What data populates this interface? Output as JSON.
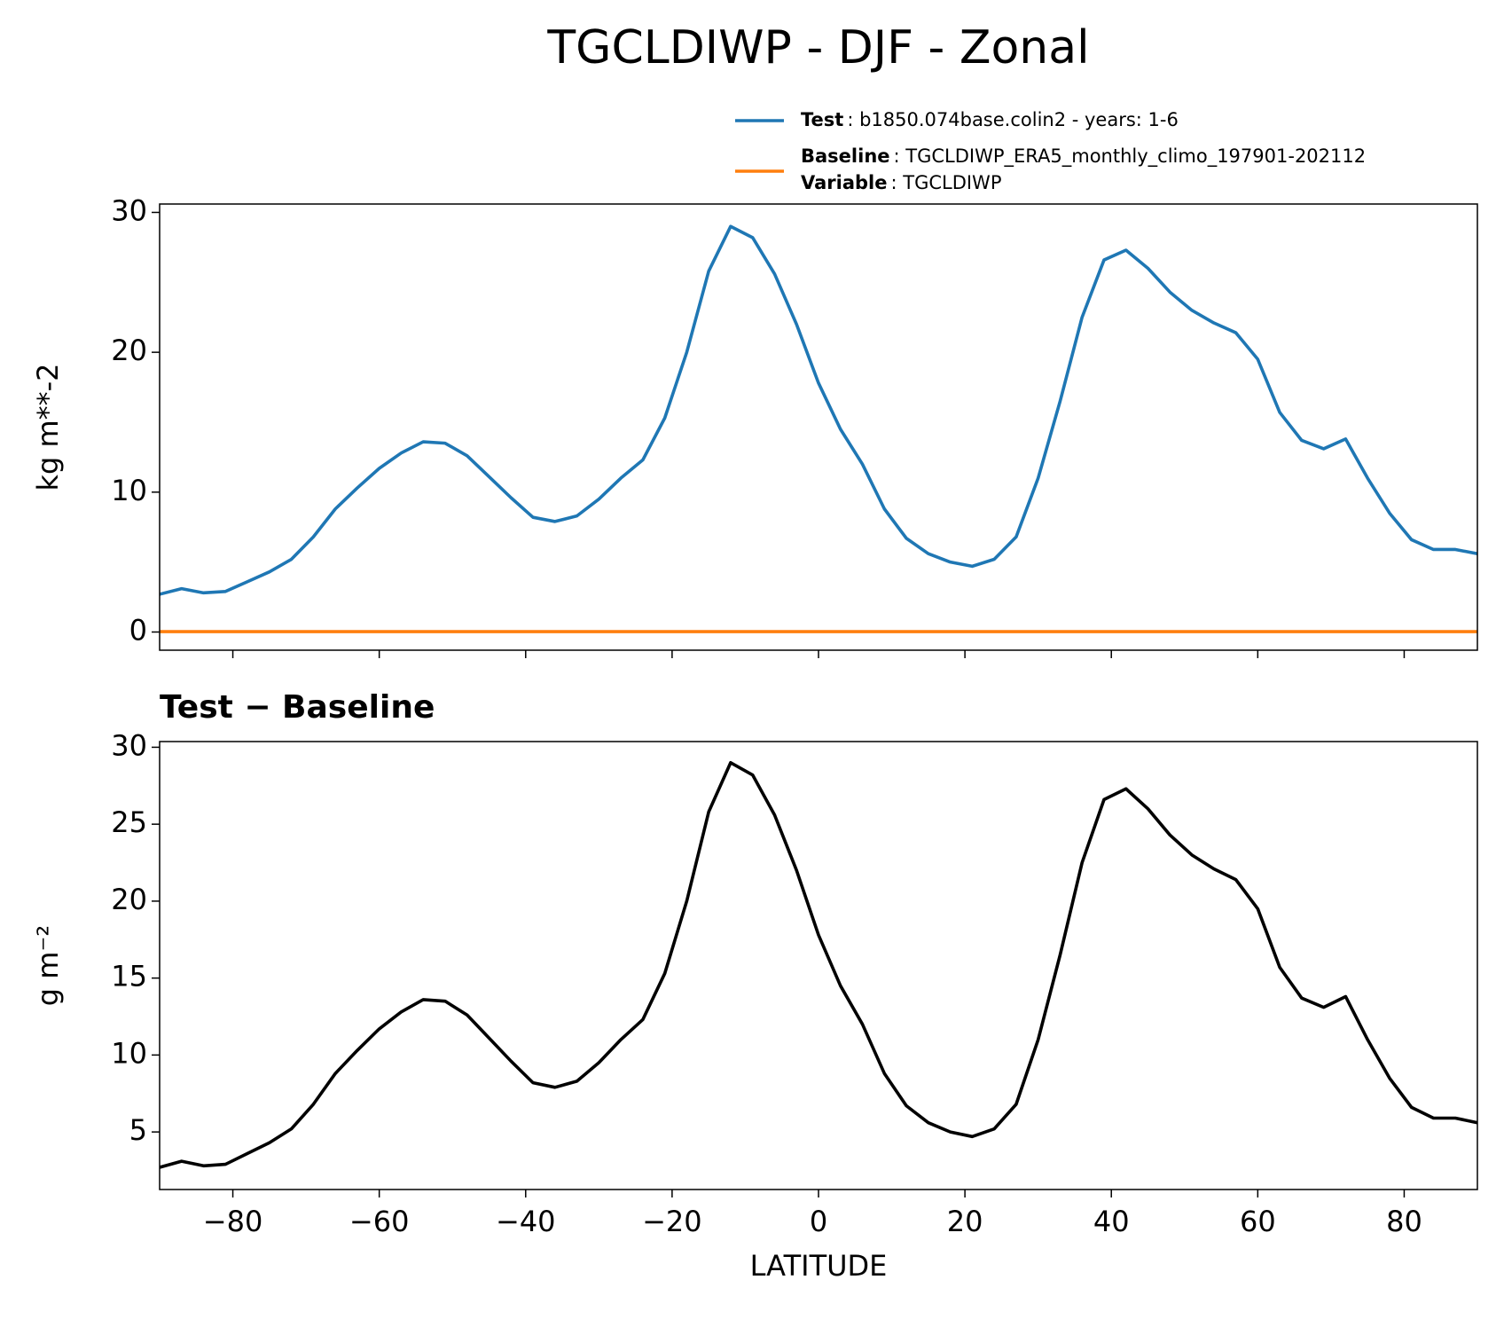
{
  "chart_data": [
    {
      "type": "line",
      "title": "TGCLDIWP - DJF - Zonal",
      "ylabel": "kg m**-2",
      "x": [
        -90,
        -87,
        -84,
        -81,
        -78,
        -75,
        -72,
        -69,
        -66,
        -63,
        -60,
        -57,
        -54,
        -51,
        -48,
        -45,
        -42,
        -39,
        -36,
        -33,
        -30,
        -27,
        -24,
        -21,
        -18,
        -15,
        -12,
        -9,
        -6,
        -3,
        0,
        3,
        6,
        9,
        12,
        15,
        18,
        21,
        24,
        27,
        30,
        33,
        36,
        39,
        42,
        45,
        48,
        51,
        54,
        57,
        60,
        63,
        66,
        69,
        72,
        75,
        78,
        81,
        84,
        87,
        90
      ],
      "series": [
        {
          "name": "Test",
          "legend_text": ": b1850.074base.colin2 - years: 1-6",
          "color": "#1f77b4",
          "values": [
            2.7,
            3.1,
            2.8,
            2.9,
            3.6,
            4.3,
            5.2,
            6.8,
            8.8,
            10.3,
            11.7,
            12.8,
            13.6,
            13.5,
            12.6,
            11.1,
            9.6,
            8.2,
            7.9,
            8.3,
            9.5,
            11.0,
            12.3,
            15.3,
            20.0,
            25.8,
            29.0,
            28.2,
            25.6,
            22.0,
            17.8,
            14.5,
            12.0,
            8.8,
            6.7,
            5.6,
            5.0,
            4.7,
            5.2,
            6.8,
            11.0,
            16.5,
            22.5,
            26.6,
            27.3,
            26.0,
            24.3,
            23.0,
            22.1,
            21.4,
            19.5,
            15.7,
            13.7,
            13.1,
            13.8,
            11.0,
            8.5,
            6.6,
            5.9,
            5.9,
            5.6
          ]
        },
        {
          "name": "Baseline",
          "legend_text": ": TGCLDIWP_ERA5_monthly_climo_197901-202112",
          "color": "#ff7f0e",
          "values": [
            0.03,
            0.03,
            0.03,
            0.03,
            0.03,
            0.03,
            0.03,
            0.03,
            0.03,
            0.03,
            0.03,
            0.03,
            0.03,
            0.03,
            0.03,
            0.03,
            0.03,
            0.03,
            0.03,
            0.03,
            0.03,
            0.03,
            0.03,
            0.03,
            0.03,
            0.03,
            0.03,
            0.03,
            0.03,
            0.03,
            0.03,
            0.03,
            0.03,
            0.03,
            0.03,
            0.03,
            0.03,
            0.03,
            0.03,
            0.03,
            0.03,
            0.03,
            0.03,
            0.03,
            0.03,
            0.03,
            0.03,
            0.03,
            0.03,
            0.03,
            0.03,
            0.03,
            0.03,
            0.03,
            0.03,
            0.03,
            0.03,
            0.03,
            0.03,
            0.03,
            0.03
          ]
        }
      ],
      "legend_extra": {
        "name": "Variable",
        "text": ": TGCLDIWP"
      },
      "xlim": [
        -90,
        90
      ],
      "ylim": [
        -1.3,
        30.6
      ],
      "yticks": [
        0,
        10,
        20,
        30
      ]
    },
    {
      "type": "line",
      "title": "Test − Baseline",
      "ylabel": "g m⁻²",
      "xlabel": "LATITUDE",
      "x": [
        -90,
        -87,
        -84,
        -81,
        -78,
        -75,
        -72,
        -69,
        -66,
        -63,
        -60,
        -57,
        -54,
        -51,
        -48,
        -45,
        -42,
        -39,
        -36,
        -33,
        -30,
        -27,
        -24,
        -21,
        -18,
        -15,
        -12,
        -9,
        -6,
        -3,
        0,
        3,
        6,
        9,
        12,
        15,
        18,
        21,
        24,
        27,
        30,
        33,
        36,
        39,
        42,
        45,
        48,
        51,
        54,
        57,
        60,
        63,
        66,
        69,
        72,
        75,
        78,
        81,
        84,
        87,
        90
      ],
      "series": [
        {
          "color": "#000000",
          "values": [
            2.7,
            3.1,
            2.8,
            2.9,
            3.6,
            4.3,
            5.2,
            6.8,
            8.8,
            10.3,
            11.7,
            12.8,
            13.6,
            13.5,
            12.6,
            11.1,
            9.6,
            8.2,
            7.9,
            8.3,
            9.5,
            11.0,
            12.3,
            15.3,
            20.0,
            25.8,
            29.0,
            28.2,
            25.6,
            22.0,
            17.8,
            14.5,
            12.0,
            8.8,
            6.7,
            5.6,
            5.0,
            4.7,
            5.2,
            6.8,
            11.0,
            16.5,
            22.5,
            26.6,
            27.3,
            26.0,
            24.3,
            23.0,
            22.1,
            21.4,
            19.5,
            15.7,
            13.7,
            13.1,
            13.8,
            11.0,
            8.5,
            6.6,
            5.9,
            5.9,
            5.6
          ]
        }
      ],
      "xlim": [
        -90,
        90
      ],
      "ylim": [
        1.26,
        30.37
      ],
      "xticks": [
        {
          "value": -80,
          "label": "−80"
        },
        {
          "value": -60,
          "label": "−60"
        },
        {
          "value": -40,
          "label": "−40"
        },
        {
          "value": -20,
          "label": "−20"
        },
        0,
        20,
        40,
        60,
        80
      ],
      "yticks": [
        5,
        10,
        15,
        20,
        25,
        30
      ]
    }
  ]
}
